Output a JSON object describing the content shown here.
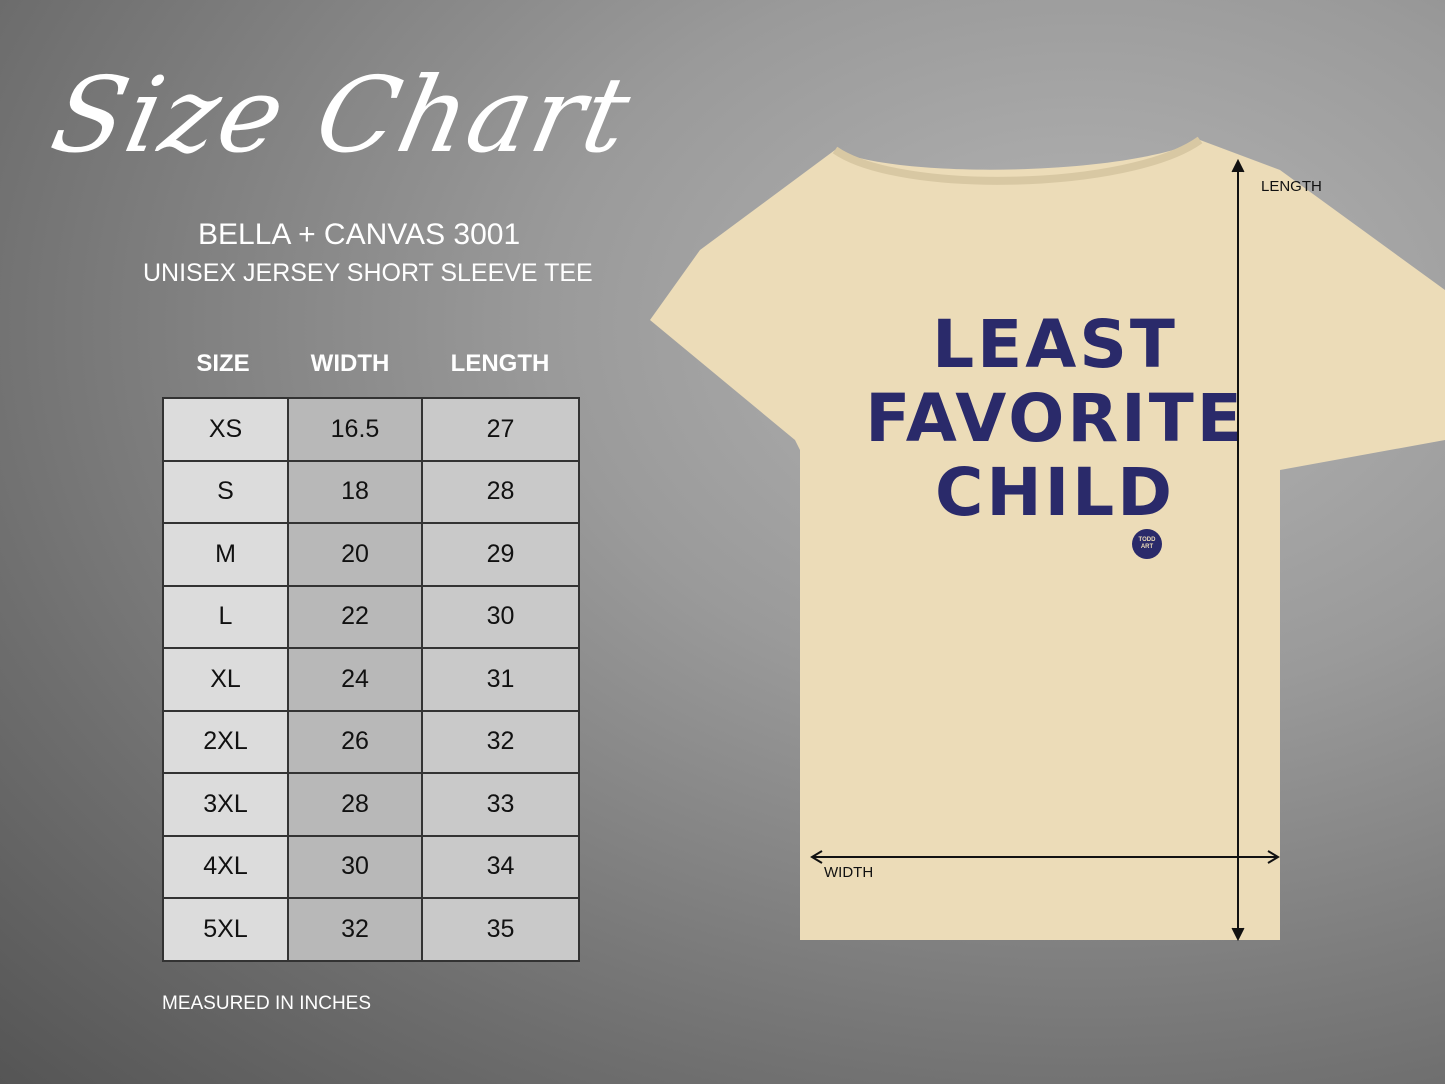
{
  "title": "Size Chart",
  "brand": "BELLA + CANVAS 3001",
  "product": "UNISEX JERSEY SHORT SLEEVE TEE",
  "table": {
    "headers": [
      "SIZE",
      "WIDTH",
      "LENGTH"
    ],
    "rows": [
      [
        "XS",
        "16.5",
        "27"
      ],
      [
        "S",
        "18",
        "28"
      ],
      [
        "M",
        "20",
        "29"
      ],
      [
        "L",
        "22",
        "30"
      ],
      [
        "XL",
        "24",
        "31"
      ],
      [
        "2XL",
        "26",
        "32"
      ],
      [
        "3XL",
        "28",
        "33"
      ],
      [
        "4XL",
        "30",
        "34"
      ],
      [
        "5XL",
        "32",
        "35"
      ]
    ]
  },
  "note": "MEASURED IN INCHES",
  "shirt": {
    "color": "#ecdcb8",
    "print_lines": [
      "LEAST",
      "FAVORITE",
      "CHILD"
    ],
    "print_color": "#2a2a6a",
    "logo": "TODD ART",
    "length_label": "LENGTH",
    "width_label": "WIDTH"
  }
}
